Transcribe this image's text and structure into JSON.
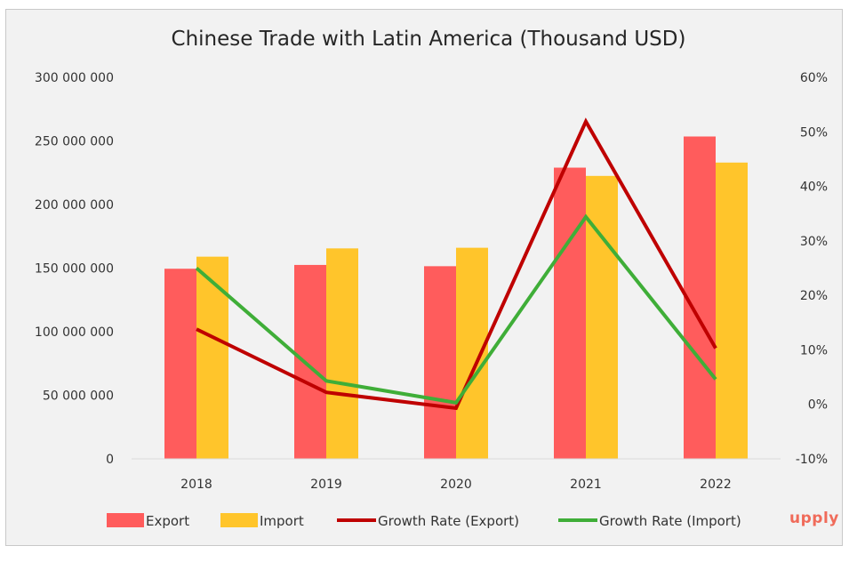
{
  "brand": "upply",
  "colors": {
    "export": "#ff5c5c",
    "import": "#ffc52b",
    "growth_export": "#bf0000",
    "growth_import": "#3fae38",
    "background": "#f2f2f2"
  },
  "chart_data": {
    "type": "bar",
    "title": "Chinese Trade with Latin America (Thousand USD)",
    "categories": [
      "2018",
      "2019",
      "2020",
      "2021",
      "2022"
    ],
    "series": [
      {
        "name": "Export",
        "type": "bar",
        "axis": "left",
        "values": [
          149500000,
          152500000,
          151500000,
          229000000,
          253500000
        ]
      },
      {
        "name": "Import",
        "type": "bar",
        "axis": "left",
        "values": [
          159000000,
          165500000,
          166000000,
          222500000,
          233000000
        ]
      },
      {
        "name": "Growth Rate (Export)",
        "type": "line",
        "axis": "right",
        "values": [
          13.8,
          2.2,
          -0.7,
          51.9,
          10.3
        ]
      },
      {
        "name": "Growth Rate (Import)",
        "type": "line",
        "axis": "right",
        "values": [
          25.0,
          4.3,
          0.3,
          34.4,
          4.6
        ]
      }
    ],
    "ylim": [
      0,
      300000000
    ],
    "y_ticks": [
      0,
      50000000,
      100000000,
      150000000,
      200000000,
      250000000,
      300000000
    ],
    "y_tick_labels": [
      "0",
      "50 000 000",
      "100 000 000",
      "150 000 000",
      "200 000 000",
      "250 000 000",
      "300 000 000"
    ],
    "y2lim": [
      -10,
      60
    ],
    "y2_ticks": [
      -10,
      0,
      10,
      20,
      30,
      40,
      50,
      60
    ],
    "y2_tick_labels": [
      "-10%",
      "0%",
      "10%",
      "20%",
      "30%",
      "40%",
      "50%",
      "60%"
    ],
    "grid": false,
    "legend": "bottom"
  }
}
